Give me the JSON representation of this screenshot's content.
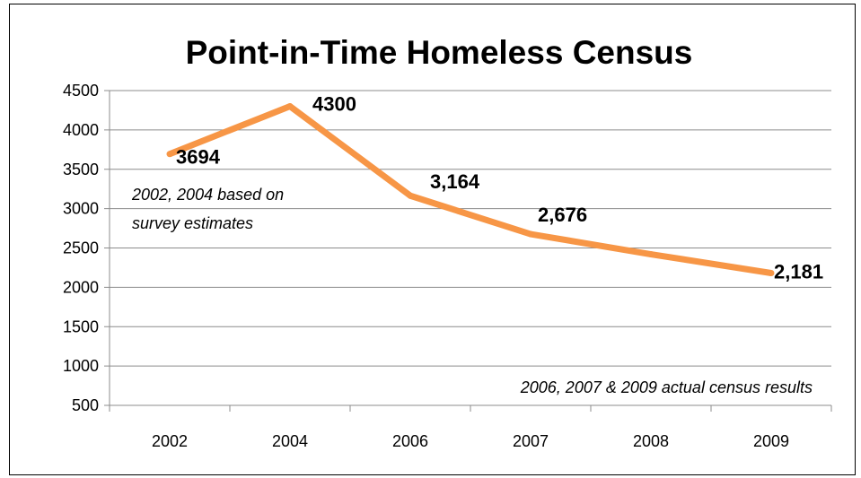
{
  "chart_data": {
    "type": "line",
    "title": "Point-in-Time Homeless Census",
    "categories": [
      "2002",
      "2004",
      "2006",
      "2007",
      "2008",
      "2009"
    ],
    "series": [
      {
        "values": [
          3694,
          4300,
          3164,
          2676,
          2420,
          2181
        ],
        "data_labels": [
          "3694",
          "4300",
          "3,164",
          "2,676",
          "",
          "2,181"
        ],
        "color": "#F79646"
      }
    ],
    "ylim": [
      500,
      4500
    ],
    "yticks": [
      "4500",
      "4000",
      "3500",
      "3000",
      "2500",
      "2000",
      "1500",
      "1000",
      "500"
    ],
    "grid": true,
    "legend": "none",
    "annotations": [
      {
        "lines": [
          "2002, 2004 based on",
          "survey estimates"
        ]
      },
      {
        "lines": [
          "2006, 2007 & 2009 actual census results"
        ]
      }
    ]
  }
}
